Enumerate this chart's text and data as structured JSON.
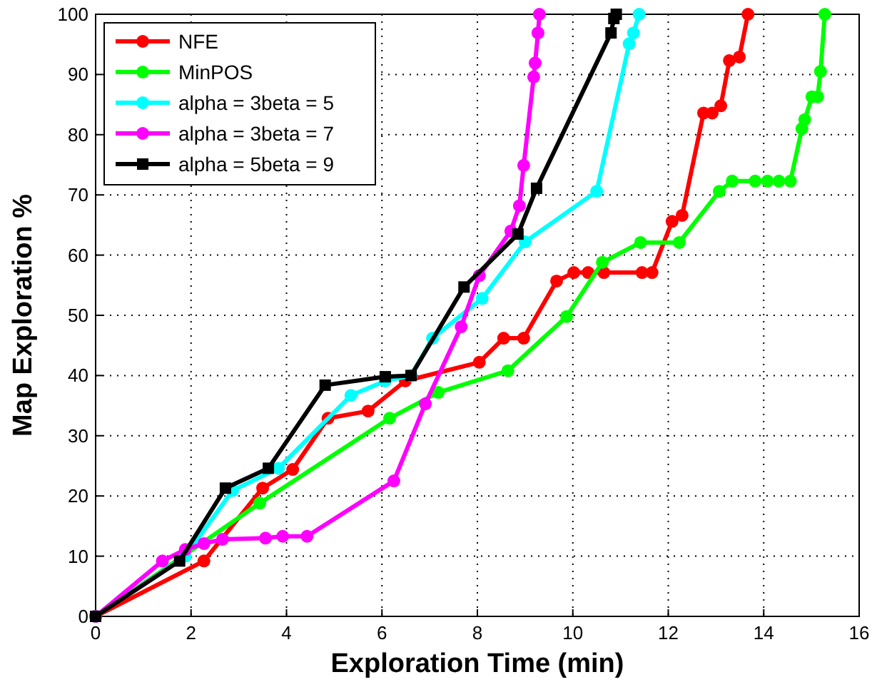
{
  "chart_data": {
    "type": "line",
    "xlabel": "Exploration Time (min)",
    "ylabel": "Map Exploration %",
    "xlim": [
      0,
      16
    ],
    "ylim": [
      0,
      100
    ],
    "xticks": [
      0,
      2,
      4,
      6,
      8,
      10,
      12,
      14,
      16
    ],
    "yticks": [
      0,
      10,
      20,
      30,
      40,
      50,
      60,
      70,
      80,
      90,
      100
    ],
    "grid": true,
    "legend": "top left",
    "marker": "circle",
    "line_style": "solid",
    "series": [
      {
        "name": "NFE",
        "color": "#ff0000",
        "x": [
          0,
          2.27,
          3.5,
          4.13,
          4.87,
          5.71,
          6.49,
          8.04,
          8.55,
          8.97,
          9.66,
          10.02,
          10.32,
          10.65,
          11.45,
          11.66,
          12.08,
          12.29,
          12.74,
          12.92,
          13.1,
          13.28,
          13.49,
          13.67
        ],
        "values": [
          0,
          9.2,
          21.3,
          24.4,
          32.9,
          34.1,
          39.1,
          42.2,
          46.2,
          46.2,
          55.7,
          57.1,
          57.1,
          57.1,
          57.1,
          57.1,
          65.6,
          66.6,
          83.6,
          83.6,
          84.8,
          92.3,
          92.9,
          100
        ]
      },
      {
        "name": "MinPOS",
        "color": "#00ff00",
        "x": [
          0,
          3.44,
          6.16,
          7.18,
          8.64,
          9.87,
          10.62,
          11.42,
          12.23,
          13.07,
          13.34,
          13.82,
          14.08,
          14.32,
          14.56,
          14.8,
          14.86,
          15.01,
          15.13,
          15.19,
          15.28
        ],
        "values": [
          0,
          18.8,
          32.9,
          37.2,
          40.8,
          49.8,
          58.8,
          62.1,
          62.1,
          70.6,
          72.3,
          72.3,
          72.3,
          72.3,
          72.3,
          81,
          82.5,
          86.3,
          86.3,
          90.5,
          100
        ]
      },
      {
        "name": "alpha = 3beta = 5",
        "color": "#00ffff",
        "x": [
          0,
          1.88,
          2.87,
          3.83,
          5.35,
          6.07,
          6.61,
          7.06,
          8.1,
          9.0,
          10.5,
          11.18,
          11.27,
          11.39
        ],
        "values": [
          0,
          10,
          20.9,
          24.6,
          36.7,
          39.1,
          40,
          46.2,
          52.8,
          62.2,
          70.6,
          95.1,
          96.9,
          100
        ]
      },
      {
        "name": "alpha = 3beta = 7",
        "color": "#ff00ff",
        "x": [
          0,
          1.4,
          1.88,
          2.27,
          2.66,
          3.56,
          3.92,
          4.43,
          6.25,
          6.91,
          7.66,
          8.04,
          8.7,
          8.88,
          8.97,
          9.18,
          9.21,
          9.27,
          9.3
        ],
        "values": [
          0,
          9.2,
          11.1,
          12.1,
          12.8,
          13,
          13.3,
          13.3,
          22.5,
          35.3,
          48.1,
          56.6,
          64,
          68.2,
          74.9,
          89.6,
          91.9,
          96.9,
          100
        ]
      },
      {
        "name": "alpha = 5beta = 9",
        "color": "#000000",
        "marker": "square",
        "x": [
          0,
          1.76,
          2.72,
          3.62,
          4.81,
          6.07,
          6.61,
          7.72,
          8.85,
          9.24,
          10.8,
          10.86,
          10.91
        ],
        "values": [
          0,
          9.2,
          21.3,
          24.6,
          38.4,
          39.8,
          40,
          54.7,
          63.5,
          71.1,
          96.9,
          99.3,
          100
        ]
      }
    ]
  }
}
